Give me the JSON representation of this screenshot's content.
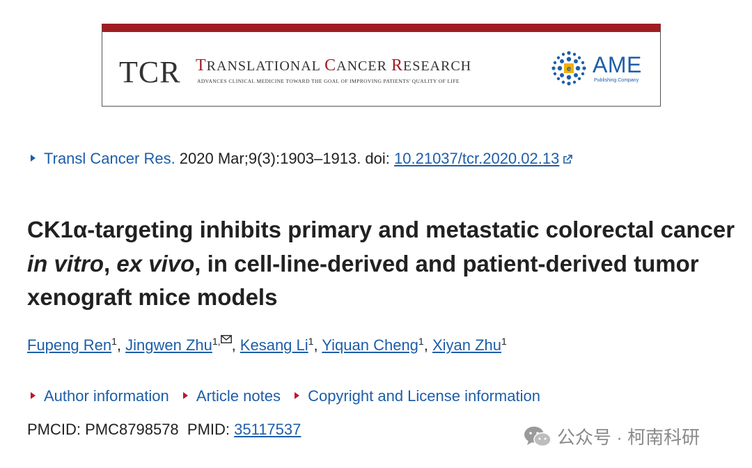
{
  "banner": {
    "logo": "TCR",
    "title_parts": [
      {
        "text": "T",
        "cls": "red"
      },
      {
        "text": "RANSLATIONAL ",
        "cls": "sc"
      },
      {
        "text": "C",
        "cls": "red"
      },
      {
        "text": "ANCER ",
        "cls": "sc"
      },
      {
        "text": "R",
        "cls": "red"
      },
      {
        "text": "ESEARCH",
        "cls": "sc"
      }
    ],
    "tagline": "ADVANCES CLINICAL MEDICINE TOWARD THE GOAL OF IMPROVING PATIENTS' QUALITY OF LIFE",
    "publisher": "AME",
    "publisher_sub": "Publishing Company",
    "accent_color": "#a01d22",
    "publisher_color": "#1d5ea8"
  },
  "citation": {
    "journal": "Transl Cancer Res.",
    "details": " 2020 Mar;9(3):1903–1913. doi: ",
    "doi": "10.21037/tcr.2020.02.13",
    "doi_icon": "external-link-icon"
  },
  "article": {
    "title_part1": "CK1α-targeting inhibits primary and metastatic colorectal cancer ",
    "title_italic1": "in vitro",
    "title_sep": ", ",
    "title_italic2": "ex vivo",
    "title_part2": ", in cell-line-derived and patient-derived tumor xenograft mice models"
  },
  "authors": [
    {
      "name": "Fupeng Ren",
      "aff": "1",
      "sep": ", "
    },
    {
      "name": "Jingwen Zhu",
      "aff": "1,",
      "sep": ", ",
      "corresponding": true
    },
    {
      "name": "Kesang Li",
      "aff": "1",
      "sep": ", "
    },
    {
      "name": "Yiquan Cheng",
      "aff": "1",
      "sep": ", "
    },
    {
      "name": "Xiyan Zhu",
      "aff": "1",
      "sep": ""
    }
  ],
  "info_links": [
    {
      "label": "Author information"
    },
    {
      "label": "Article notes"
    },
    {
      "label": "Copyright and License information"
    }
  ],
  "ids": {
    "pmcid_label": "PMCID: ",
    "pmcid": "PMC8798578",
    "pmid_label": "  PMID: ",
    "pmid": "35117537"
  },
  "watermark": {
    "text": "公众号 · 柯南科研",
    "icon": "wechat-icon"
  },
  "colors": {
    "link": "#1d5ea8",
    "bullet_red": "#c0162c",
    "text": "#212121"
  }
}
